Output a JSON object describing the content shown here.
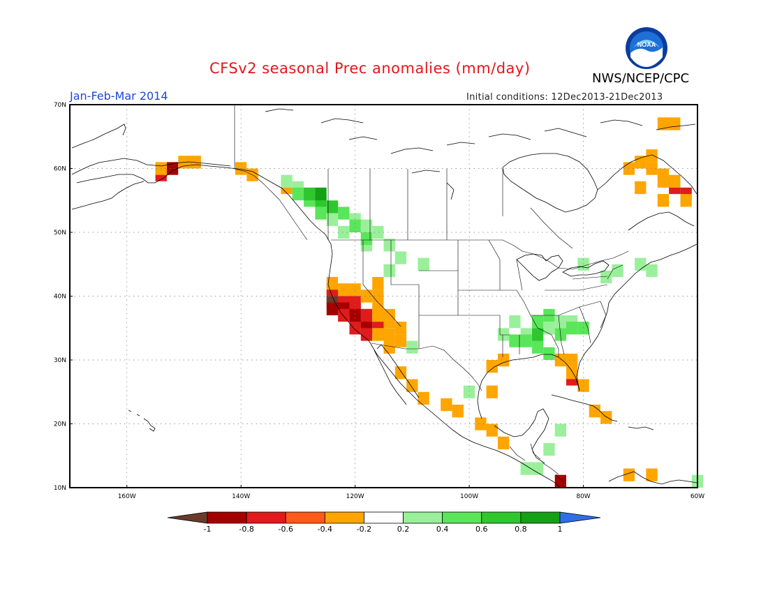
{
  "header": {
    "title": "CFSv2 seasonal Prec anomalies (mm/day)",
    "agency": "NWS/NCEP/CPC",
    "season": "Jan-Feb-Mar 2014",
    "initial_conditions": "Initial conditions: 12Dec2013-21Dec2013",
    "logo_text": "NOAA"
  },
  "map": {
    "lon_range": [
      -170,
      -60
    ],
    "lat_range": [
      10,
      70
    ],
    "lat_labels": [
      "70N",
      "60N",
      "50N",
      "40N",
      "30N",
      "20N",
      "10N"
    ],
    "lon_labels": [
      "160W",
      "140W",
      "120W",
      "100W",
      "80W",
      "60W"
    ],
    "grid": "dotted",
    "anomaly_cells_deg": 2,
    "dry_regions": [
      {
        "level": -1.0,
        "cells": [
          [
            -124,
            40
          ],
          [
            -124,
            39
          ]
        ]
      },
      {
        "level": -0.8,
        "cells": [
          [
            -122,
            39
          ],
          [
            -122,
            38
          ],
          [
            -120,
            38
          ],
          [
            -120,
            37
          ],
          [
            -120,
            36
          ],
          [
            -118,
            36
          ],
          [
            -118,
            35
          ],
          [
            -152,
            60
          ],
          [
            -124,
            38
          ],
          [
            -84,
            11
          ]
        ]
      },
      {
        "level": -0.6,
        "cells": [
          [
            -122,
            40
          ],
          [
            -120,
            39
          ],
          [
            -122,
            37
          ],
          [
            -118,
            37
          ],
          [
            -118,
            34
          ],
          [
            -120,
            35
          ],
          [
            -116,
            35
          ],
          [
            -82,
            27
          ],
          [
            -64,
            57
          ],
          [
            -62,
            56
          ],
          [
            -154,
            59
          ],
          [
            -124,
            41
          ]
        ]
      },
      {
        "level": -0.4,
        "cells": [
          [
            -124,
            42
          ],
          [
            -122,
            41
          ],
          [
            -120,
            41
          ],
          [
            -118,
            40
          ],
          [
            -116,
            38
          ],
          [
            -116,
            37
          ],
          [
            -114,
            37
          ],
          [
            -114,
            36
          ],
          [
            -116,
            34
          ],
          [
            -114,
            34
          ],
          [
            -112,
            33
          ],
          [
            -112,
            35
          ],
          [
            -114,
            32
          ],
          [
            -154,
            60
          ],
          [
            -150,
            61
          ],
          [
            -148,
            61
          ],
          [
            -140,
            60
          ],
          [
            -138,
            59
          ],
          [
            -132,
            57
          ],
          [
            -104,
            23
          ],
          [
            -102,
            22
          ],
          [
            -96,
            29
          ],
          [
            -96,
            25
          ],
          [
            -94,
            30
          ],
          [
            -98,
            20
          ],
          [
            -96,
            19
          ],
          [
            -94,
            17
          ],
          [
            -84,
            30
          ],
          [
            -82,
            30
          ],
          [
            -82,
            28
          ],
          [
            -80,
            26
          ],
          [
            -78,
            22
          ],
          [
            -76,
            21
          ],
          [
            -72,
            12
          ],
          [
            -68,
            12
          ],
          [
            -68,
            60
          ],
          [
            -66,
            59
          ],
          [
            -66,
            58
          ],
          [
            -64,
            58
          ],
          [
            -62,
            55
          ],
          [
            -66,
            55
          ],
          [
            -68,
            62
          ],
          [
            -70,
            61
          ],
          [
            -72,
            60
          ],
          [
            -70,
            57
          ],
          [
            -66,
            67
          ],
          [
            -64,
            67
          ],
          [
            -110,
            26
          ],
          [
            -108,
            24
          ],
          [
            -112,
            28
          ],
          [
            -116,
            42
          ],
          [
            -116,
            40
          ]
        ]
      }
    ],
    "wet_regions": [
      {
        "level": 0.2,
        "cells": [
          [
            -132,
            58
          ],
          [
            -130,
            57
          ],
          [
            -128,
            56
          ],
          [
            -126,
            54
          ],
          [
            -124,
            52
          ],
          [
            -122,
            50
          ],
          [
            -120,
            52
          ],
          [
            -118,
            51
          ],
          [
            -116,
            50
          ],
          [
            -114,
            48
          ],
          [
            -112,
            46
          ],
          [
            -108,
            45
          ],
          [
            -118,
            48
          ],
          [
            -114,
            44
          ],
          [
            -110,
            32
          ],
          [
            -100,
            25
          ],
          [
            -94,
            34
          ],
          [
            -92,
            36
          ],
          [
            -90,
            34
          ],
          [
            -88,
            34
          ],
          [
            -86,
            35
          ],
          [
            -84,
            36
          ],
          [
            -82,
            36
          ],
          [
            -76,
            43
          ],
          [
            -74,
            44
          ],
          [
            -80,
            45
          ],
          [
            -70,
            45
          ],
          [
            -68,
            44
          ],
          [
            -90,
            13
          ],
          [
            -88,
            13
          ],
          [
            -86,
            16
          ],
          [
            -84,
            19
          ],
          [
            -60,
            11
          ]
        ]
      },
      {
        "level": 0.4,
        "cells": [
          [
            -130,
            56
          ],
          [
            -128,
            55
          ],
          [
            -126,
            53
          ],
          [
            -122,
            53
          ],
          [
            -120,
            51
          ],
          [
            -118,
            49
          ],
          [
            -92,
            33
          ],
          [
            -90,
            33
          ],
          [
            -88,
            32
          ],
          [
            -86,
            31
          ],
          [
            -84,
            34
          ],
          [
            -82,
            35
          ],
          [
            -80,
            35
          ],
          [
            -88,
            36
          ],
          [
            -86,
            37
          ]
        ]
      },
      {
        "level": 0.6,
        "cells": [
          [
            -128,
            56
          ],
          [
            -126,
            55
          ],
          [
            -124,
            54
          ],
          [
            -88,
            34
          ]
        ]
      },
      {
        "level": 0.8,
        "cells": [
          [
            -126,
            56
          ]
        ]
      }
    ]
  },
  "colorbar": {
    "labels": [
      "-1",
      "-0.8",
      "-0.6",
      "-0.4",
      "-0.2",
      "0.2",
      "0.4",
      "0.6",
      "0.8",
      "1"
    ],
    "bins": [
      {
        "color": "#6b3b2a"
      },
      {
        "color": "#a50000"
      },
      {
        "color": "#e01b1b"
      },
      {
        "color": "#ff5a1a"
      },
      {
        "color": "#ffa500"
      },
      {
        "color": "#ffffff"
      },
      {
        "color": "#9af09a"
      },
      {
        "color": "#5ae65a"
      },
      {
        "color": "#2ec82e"
      },
      {
        "color": "#16a016"
      },
      {
        "color": "#2e6fe6"
      }
    ]
  },
  "colors": {
    "title": "#e8141b",
    "season": "#1e47d8",
    "coast": "#000000",
    "level_-1.0": "#6b3b2a",
    "level_-0.8": "#a50000",
    "level_-0.6": "#e01b1b",
    "level_-0.4": "#ffa500",
    "level_0.2": "#9af09a",
    "level_0.4": "#5ae65a",
    "level_0.6": "#2ec82e",
    "level_0.8": "#16a016"
  }
}
